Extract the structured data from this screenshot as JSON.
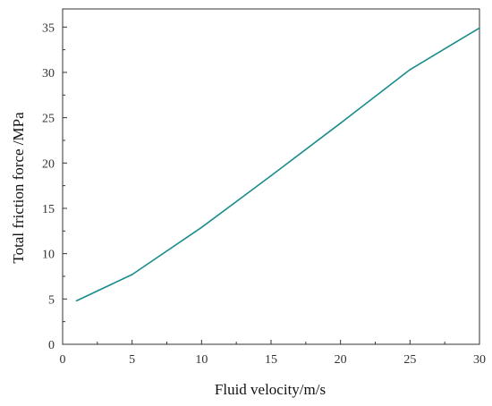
{
  "chart_data": {
    "type": "line",
    "title": "",
    "xlabel": "Fluid velocity/m/s",
    "ylabel": "Total friction force /MPa",
    "xlim": [
      0,
      30
    ],
    "ylim": [
      0,
      37
    ],
    "x_ticks": [
      0,
      5,
      10,
      15,
      20,
      25,
      30
    ],
    "y_ticks": [
      0,
      5,
      10,
      15,
      20,
      25,
      30,
      35
    ],
    "grid": false,
    "legend": "none",
    "series": [
      {
        "color": "#1a8c8c",
        "x": [
          1,
          5,
          10,
          15,
          20,
          25,
          30
        ],
        "y": [
          4.8,
          7.7,
          12.9,
          18.6,
          24.4,
          30.3,
          34.9
        ]
      }
    ]
  }
}
